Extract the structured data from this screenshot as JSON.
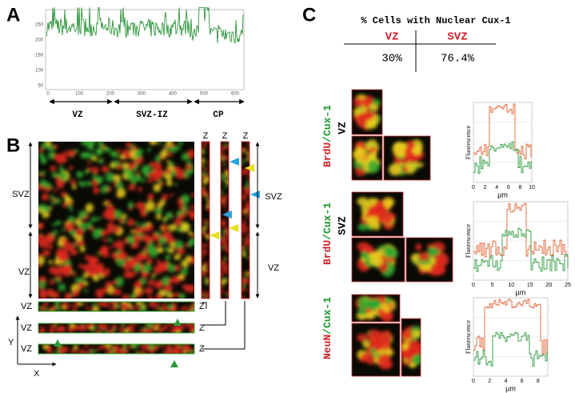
{
  "panel_a": {
    "label": "A",
    "yticks": [
      50,
      100,
      150,
      200,
      250
    ],
    "xticks": [
      0,
      100,
      200,
      300,
      400,
      500,
      600
    ],
    "regions": [
      "VZ",
      "SVZ-IZ",
      "CP"
    ]
  },
  "panel_b": {
    "label": "B",
    "left_labels": [
      "SVZ",
      "VZ"
    ],
    "z_top": [
      "Z",
      "Z",
      "Z"
    ],
    "right_labels": [
      "SVZ",
      "VZ"
    ],
    "strip_left": [
      "VZ",
      "VZ",
      "VZ"
    ],
    "strip_right": [
      "Z",
      "Z",
      "Z"
    ],
    "axis_y": "Y",
    "axis_x": "X"
  },
  "panel_c": {
    "label": "C",
    "title": "% Cells with Nuclear Cux-1",
    "table": {
      "headers": [
        "VZ",
        "SVZ"
      ],
      "values": [
        "30%",
        "76.4%"
      ]
    },
    "rows": [
      {
        "red": "BrdU",
        "sep": "/",
        "green": "Cux-1",
        "region": "VZ"
      },
      {
        "red": "BrdU",
        "sep": "/",
        "green": "Cux-1",
        "region": "SVZ"
      },
      {
        "red": "NeuN",
        "sep": "/",
        "green": "Cux-1"
      }
    ],
    "plots": [
      {
        "y_label": "Fluorescence",
        "x_label": "µm",
        "xticks": [
          0,
          2,
          4,
          6,
          8,
          10
        ]
      },
      {
        "y_label": "Fluorescence",
        "x_label": "µm",
        "xticks": [
          0,
          5,
          10,
          15,
          20,
          25
        ]
      },
      {
        "y_label": "Fluorescence",
        "x_label": "µm",
        "xticks": [
          0,
          2,
          4,
          6,
          8
        ]
      }
    ]
  }
}
